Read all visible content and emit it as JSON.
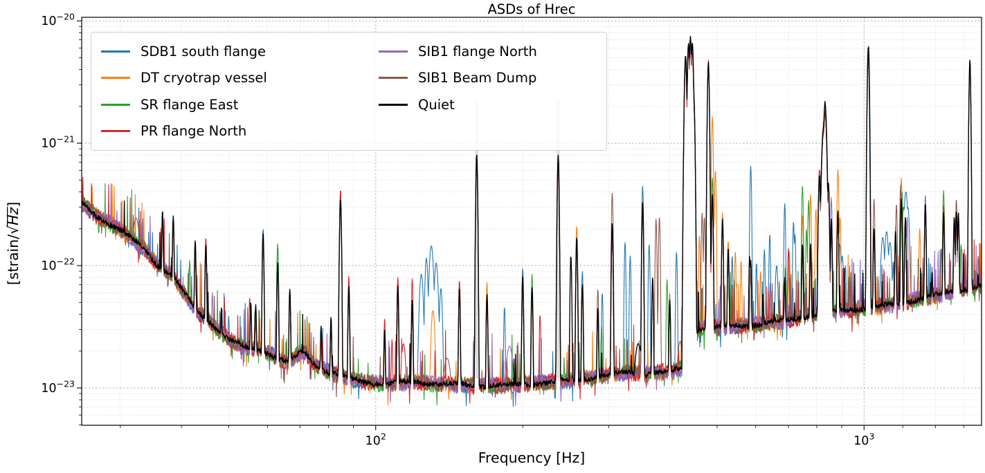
{
  "figure": {
    "title": "ASDs of Hrec",
    "ylabel_prefix": "[strain/",
    "ylabel_radical": "√",
    "ylabel_unit": "Hz",
    "ylabel_suffix": "]"
  },
  "chart_data": {
    "type": "line",
    "title": "ASDs of Hrec",
    "xlabel": "Frequency [Hz]",
    "ylabel": "[strain/√Hz]",
    "x_scale": "log",
    "y_scale": "log",
    "xlim": [
      25,
      1740
    ],
    "ylim": [
      4.95e-24,
      1.07e-20
    ],
    "grid": {
      "major": true,
      "minor": true,
      "style": "dotted"
    },
    "legend": {
      "location": "upper left",
      "columns": 2
    },
    "x_ticks": [
      {
        "v": 100,
        "base": "10",
        "exp": "2"
      },
      {
        "v": 1000,
        "base": "10",
        "exp": "3"
      }
    ],
    "y_ticks": [
      {
        "v": 1e-20,
        "base": "10",
        "exp": "−20"
      },
      {
        "v": 1e-21,
        "base": "10",
        "exp": "−21"
      },
      {
        "v": 1e-22,
        "base": "10",
        "exp": "−22"
      },
      {
        "v": 1e-23,
        "base": "10",
        "exp": "−23"
      }
    ],
    "baseline_strain": [
      [
        25,
        3.25e-22
      ],
      [
        26,
        2.8e-22
      ],
      [
        27,
        2.5e-22
      ],
      [
        28,
        2.3e-22
      ],
      [
        29,
        2.12e-22
      ],
      [
        30,
        1.95e-22
      ],
      [
        31,
        1.78e-22
      ],
      [
        32,
        1.6e-22
      ],
      [
        33,
        1.45e-22
      ],
      [
        34,
        1.3e-22
      ],
      [
        35,
        1.12e-22
      ],
      [
        36,
        9.8e-23
      ],
      [
        37,
        9.2e-23
      ],
      [
        38,
        8.6e-23
      ],
      [
        39,
        7.6e-23
      ],
      [
        40,
        6.4e-23
      ],
      [
        41,
        5.6e-23
      ],
      [
        42,
        4.9e-23
      ],
      [
        43,
        4.2e-23
      ],
      [
        44,
        3.9e-23
      ],
      [
        45,
        3.7e-23
      ],
      [
        46,
        3.4e-23
      ],
      [
        47,
        3.1e-23
      ],
      [
        48,
        2.85e-23
      ],
      [
        50,
        2.5e-23
      ],
      [
        52,
        2.3e-23
      ],
      [
        54,
        2.15e-23
      ],
      [
        56,
        2.1e-23
      ],
      [
        58,
        2.05e-23
      ],
      [
        60,
        1.95e-23
      ],
      [
        62,
        1.8e-23
      ],
      [
        64,
        1.7e-23
      ],
      [
        66,
        1.62e-23
      ],
      [
        68,
        1.75e-23
      ],
      [
        70,
        1.95e-23
      ],
      [
        71,
        2e-23
      ],
      [
        72,
        1.9e-23
      ],
      [
        74,
        1.65e-23
      ],
      [
        76,
        1.5e-23
      ],
      [
        78,
        1.42e-23
      ],
      [
        80,
        1.35e-23
      ],
      [
        84,
        1.28e-23
      ],
      [
        88,
        1.2e-23
      ],
      [
        95,
        1.12e-23
      ],
      [
        105,
        1.08e-23
      ],
      [
        120,
        1.12e-23
      ],
      [
        135,
        1.08e-23
      ],
      [
        150,
        1.06e-23
      ],
      [
        165,
        1.04e-23
      ],
      [
        180,
        1.05e-23
      ],
      [
        195,
        1.06e-23
      ],
      [
        210,
        1.08e-23
      ],
      [
        230,
        1.12e-23
      ],
      [
        250,
        1.15e-23
      ],
      [
        270,
        1.2e-23
      ],
      [
        290,
        1.25e-23
      ],
      [
        310,
        1.3e-23
      ],
      [
        330,
        1.35e-23
      ],
      [
        350,
        1.3e-23
      ],
      [
        370,
        1.32e-23
      ],
      [
        390,
        1.35e-23
      ],
      [
        410,
        1.4e-23
      ],
      [
        425,
        1.45e-23
      ],
      [
        435,
        2e-23
      ],
      [
        448,
        2.9e-23
      ],
      [
        455,
        3e-23
      ],
      [
        470,
        3.05e-23
      ],
      [
        500,
        3.1e-23
      ],
      [
        550,
        3.2e-23
      ],
      [
        600,
        3.3e-23
      ],
      [
        650,
        3.45e-23
      ],
      [
        700,
        3.6e-23
      ],
      [
        750,
        3.8e-23
      ],
      [
        800,
        4e-23
      ],
      [
        850,
        4.15e-23
      ],
      [
        900,
        4.3e-23
      ],
      [
        950,
        4.4e-23
      ],
      [
        1000,
        4.5e-23
      ],
      [
        1060,
        4.6e-23
      ],
      [
        1120,
        4.75e-23
      ],
      [
        1180,
        4.9e-23
      ],
      [
        1250,
        5.2e-23
      ],
      [
        1320,
        5.45e-23
      ],
      [
        1400,
        5.7e-23
      ],
      [
        1480,
        6e-23
      ],
      [
        1560,
        6.3e-23
      ],
      [
        1640,
        6.6e-23
      ],
      [
        1740,
        6.9e-23
      ]
    ],
    "shared_peaks": [
      [
        36.6,
        2.8e-22
      ],
      [
        38.5,
        2.55e-22
      ],
      [
        42.7,
        1.6e-22
      ],
      [
        44.9,
        1.5e-22
      ],
      [
        48.3,
        4.5e-23
      ],
      [
        55.5,
        5e-23
      ],
      [
        56.8,
        4.8e-23
      ],
      [
        58.8,
        1.85e-22
      ],
      [
        63,
        1.05e-22
      ],
      [
        66.7,
        6.4e-23
      ],
      [
        77.3,
        3.2e-23
      ],
      [
        81,
        3.8e-23
      ],
      [
        84.7,
        3.5e-22,
        0.0018
      ],
      [
        88.1,
        6.8e-23
      ],
      [
        104.3,
        3e-23
      ],
      [
        111,
        6.8e-23
      ],
      [
        118.8,
        5.2e-23
      ],
      [
        148.4,
        6.6e-23
      ],
      [
        161,
        7.9e-22,
        0.0017
      ],
      [
        169,
        5.8e-23
      ],
      [
        200,
        8.2e-23
      ],
      [
        209,
        6.6e-23
      ],
      [
        236.4,
        7.8e-22,
        0.0017
      ],
      [
        258,
        1.7e-22
      ],
      [
        265,
        7e-23
      ],
      [
        285,
        4.5e-23
      ],
      [
        305,
        2.1e-22
      ],
      [
        352,
        3.2e-22
      ],
      [
        369,
        8e-23
      ],
      [
        400,
        5.2e-23
      ],
      [
        431,
        5.2e-21,
        0.0022
      ],
      [
        437,
        6.5e-21,
        0.0022
      ],
      [
        441,
        7.3e-21,
        0.0022
      ],
      [
        445,
        6.6e-21,
        0.0022
      ],
      [
        448,
        2.5e-21,
        0.002
      ],
      [
        480,
        4.4e-21,
        0.0018
      ],
      [
        489,
        3.8e-22
      ],
      [
        513,
        2.4e-22
      ],
      [
        527,
        1.4e-22
      ],
      [
        586,
        1.1e-22
      ],
      [
        688,
        8e-23
      ],
      [
        748,
        1.5e-22
      ],
      [
        777,
        1.5e-22
      ],
      [
        810,
        5.5e-22,
        0.002
      ],
      [
        826,
        1.35e-21,
        0.0035
      ],
      [
        832,
        2.1e-21,
        0.003
      ],
      [
        838,
        4.5e-22,
        0.002
      ],
      [
        845,
        4.8e-22,
        0.002
      ],
      [
        857,
        2.4e-22
      ],
      [
        884,
        2.8e-22
      ],
      [
        1020,
        6e-21,
        0.0018
      ],
      [
        1048,
        2e-22
      ],
      [
        1160,
        1.9e-22
      ],
      [
        1192,
        3.5e-22
      ],
      [
        1215,
        2.5e-22
      ],
      [
        1335,
        3.2e-22
      ],
      [
        1378,
        9e-23
      ],
      [
        1455,
        2.7e-22
      ],
      [
        1530,
        2.5e-22
      ],
      [
        1545,
        2.8e-22
      ],
      [
        1560,
        2.7e-22
      ],
      [
        1647,
        4.7e-21,
        0.0016
      ],
      [
        1712,
        8.5e-23
      ]
    ],
    "overload_bands": [
      {
        "f": 161,
        "top": 2.2e-21
      },
      {
        "f": 236.4,
        "top": 2.3e-21
      }
    ],
    "series": [
      {
        "name": "SDB1 south flange",
        "color": "#1f77b4",
        "peaks": [
          [
            50,
            3.9e-23
          ],
          [
            58.8,
            2e-22
          ],
          [
            63,
            1.5e-22
          ],
          [
            111,
            7.5e-23
          ],
          [
            124,
            8.5e-23,
            0.004
          ],
          [
            127,
            1.15e-22,
            0.003
          ],
          [
            130,
            1.45e-22,
            0.0045
          ],
          [
            133,
            1.05e-22,
            0.004
          ],
          [
            136,
            6.5e-23,
            0.003
          ],
          [
            183.5,
            4.6e-23
          ],
          [
            200,
            9.5e-23
          ],
          [
            265,
            9e-23
          ],
          [
            291,
            6e-23
          ],
          [
            324,
            1.55e-22
          ],
          [
            332,
            1.2e-22
          ],
          [
            352,
            4.5e-22
          ],
          [
            363,
            1.5e-22
          ],
          [
            413,
            1.3e-22
          ],
          [
            450,
            1e-21
          ],
          [
            537,
            1.2e-22
          ],
          [
            586,
            6.5e-22
          ],
          [
            602,
            1.05e-22
          ],
          [
            625,
            1.35e-22
          ],
          [
            641,
            1.8e-22
          ],
          [
            662,
            1e-22,
            0.003
          ],
          [
            688,
            3.2e-22
          ],
          [
            717,
            2.3e-22
          ],
          [
            722,
            1.8e-22
          ],
          [
            890,
            1.5e-22,
            0.004
          ],
          [
            902,
            1.2e-22,
            0.003
          ],
          [
            916,
            1e-22
          ],
          [
            1022,
            6.4e-21
          ],
          [
            1092,
            1.7e-22,
            0.004
          ],
          [
            1112,
            1.9e-22,
            0.004
          ],
          [
            1130,
            1.55e-22,
            0.004
          ],
          [
            1148,
            1.1e-22
          ],
          [
            1205,
            3e-22,
            0.003
          ],
          [
            1218,
            4e-22,
            0.004
          ],
          [
            1230,
            3e-22,
            0.003
          ]
        ]
      },
      {
        "name": "DT cryotrap vessel",
        "color": "#ff7f0e",
        "peaks": [
          [
            84.7,
            3.9e-22
          ],
          [
            131,
            4.3e-23,
            0.004
          ],
          [
            169,
            7.3e-23
          ],
          [
            258,
            2.1e-22
          ],
          [
            352,
            2.9e-22
          ],
          [
            424,
            4.8e-23
          ],
          [
            460,
            1.75e-22
          ],
          [
            489,
            1.65e-21
          ],
          [
            496,
            6e-22
          ],
          [
            513,
            2.7e-22
          ],
          [
            527,
            1.6e-22
          ],
          [
            545,
            1.3e-22
          ],
          [
            560,
            1.1e-22
          ],
          [
            614,
            9e-23
          ],
          [
            703,
            1.3e-22
          ],
          [
            748,
            2.6e-22
          ],
          [
            777,
            3.8e-22
          ],
          [
            797,
            2.9e-22
          ],
          [
            884,
            6.1e-22
          ],
          [
            893,
            2.5e-22
          ],
          [
            1192,
            5.2e-22
          ],
          [
            1300,
            2e-22
          ]
        ]
      },
      {
        "name": "SR flange East",
        "color": "#2ca02c",
        "peaks": [
          [
            41.6,
            1.1e-22
          ],
          [
            63,
            1.5e-22
          ],
          [
            209,
            8.5e-23
          ],
          [
            290,
            3.2e-23
          ],
          [
            395,
            7.7e-23
          ],
          [
            489,
            5.2e-22
          ],
          [
            748,
            4.5e-22
          ],
          [
            762,
            2e-22
          ],
          [
            770,
            3.4e-22
          ],
          [
            838,
            4.9e-22
          ],
          [
            1160,
            2.1e-22
          ],
          [
            1196,
            4e-22
          ],
          [
            1455,
            4.1e-22
          ],
          [
            1580,
            1.5e-22
          ]
        ]
      },
      {
        "name": "PR flange North",
        "color": "#d62728",
        "peaks": [
          [
            44.9,
            1.7e-22
          ],
          [
            55.2,
            5.5e-23
          ],
          [
            84.7,
            4.2e-22
          ],
          [
            88.1,
            8.2e-23
          ],
          [
            104.3,
            3.7e-23
          ],
          [
            108,
            2.5e-23
          ],
          [
            111,
            8e-23
          ],
          [
            114,
            2.3e-23,
            0.005
          ],
          [
            118.8,
            7.8e-23
          ],
          [
            148.4,
            7.6e-23
          ],
          [
            217,
            4e-23
          ],
          [
            480,
            4.8e-21
          ],
          [
            700,
            1.4e-22
          ],
          [
            810,
            6.2e-22
          ],
          [
            1345,
            7e-23
          ],
          [
            1455,
            3.1e-22
          ]
        ]
      },
      {
        "name": "SIB1 flange North",
        "color": "#9467bd",
        "peaks": [
          [
            46.3,
            6e-23
          ],
          [
            188,
            2.2e-23,
            0.008
          ],
          [
            400,
            5.9e-23
          ],
          [
            508,
            6e-23
          ],
          [
            812,
            6e-22
          ],
          [
            857,
            3.6e-22
          ],
          [
            1225,
            2.5e-22
          ],
          [
            1335,
            3.8e-22
          ],
          [
            1378,
            1e-22
          ],
          [
            1562,
            2.1e-22
          ]
        ]
      },
      {
        "name": "SIB1 Beam Dump",
        "color": "#8c564b",
        "peaks": [
          [
            32.3,
            2.45e-22,
            0.008
          ],
          [
            140,
            1.75e-23,
            0.009
          ],
          [
            285,
            6.4e-23
          ],
          [
            305,
            3.9e-22
          ],
          [
            375,
            2.4e-22
          ],
          [
            381,
            2.5e-22
          ],
          [
            420,
            2.4e-23,
            0.006
          ],
          [
            437,
            6.6e-21
          ],
          [
            466,
            2.7e-22
          ],
          [
            471,
            2.5e-22
          ],
          [
            826,
            1.5e-21
          ],
          [
            1048,
            3.5e-22
          ],
          [
            1165,
            3.2e-22
          ],
          [
            1188,
            4.5e-22
          ],
          [
            1440,
            1.4e-22
          ],
          [
            1545,
            3.5e-22
          ],
          [
            1712,
            1.2e-22
          ]
        ]
      },
      {
        "name": "Quiet",
        "color": "#000000",
        "peaks": [
          [
            29.5,
            2.1e-22
          ],
          [
            70,
            2e-23,
            0.012
          ],
          [
            161,
            8.1e-22
          ],
          [
            236.4,
            8e-22
          ],
          [
            251,
            1.2e-22
          ],
          [
            305,
            2.2e-22
          ],
          [
            345,
            2.3e-23,
            0.008
          ],
          [
            352,
            3.3e-22
          ],
          [
            441,
            7.5e-21
          ],
          [
            480,
            4.6e-21
          ],
          [
            583,
            1.2e-22
          ],
          [
            621,
            6e-23
          ],
          [
            832,
            2.2e-21
          ],
          [
            1020,
            6.2e-21
          ],
          [
            1647,
            4.8e-21
          ]
        ]
      }
    ]
  }
}
